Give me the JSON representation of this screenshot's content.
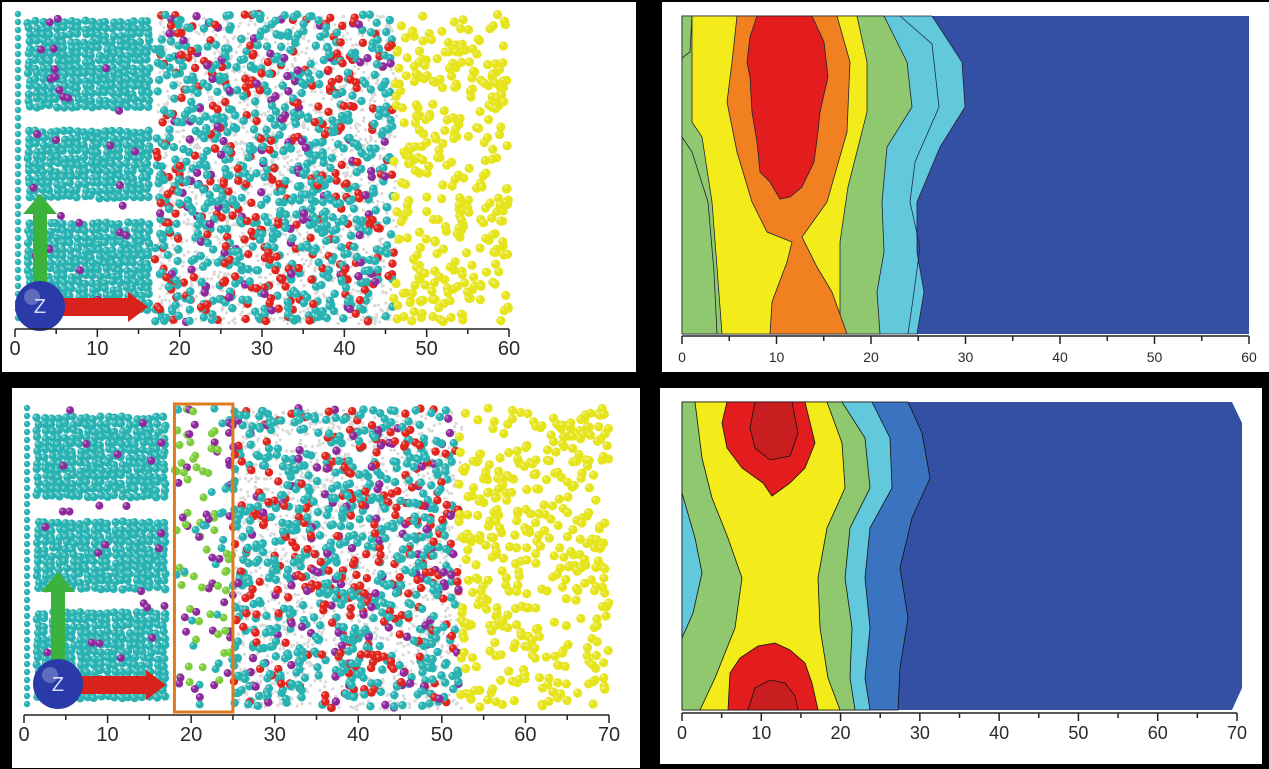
{
  "figure": {
    "layout": "2x2 grid of panels",
    "background": "#000000",
    "panels": [
      {
        "id": "top-left",
        "type": "molecular-snapshot",
        "x_axis": {
          "ticks": [
            "0",
            "10",
            "20",
            "30",
            "40",
            "50",
            "60"
          ],
          "min": 0,
          "max": 60
        },
        "regions": [
          {
            "name": "layered-crystal-teal",
            "x_range": [
              0,
              17
            ],
            "color": "#29b2b2"
          },
          {
            "name": "mixed-liquid-teal-red-purple",
            "x_range": [
              17,
              46
            ],
            "colors": [
              "#29b2b2",
              "#e0241e",
              "#8e2a9c",
              "#d9d9d9"
            ]
          },
          {
            "name": "yellow-atoms",
            "x_range": [
              46,
              60
            ],
            "color": "#e6e41c"
          }
        ],
        "axes_gizmo": {
          "z_label": "Z",
          "up_arrow_color": "#3bb23b",
          "right_arrow_color": "#d8231c",
          "sphere_color": "#2a3aa8"
        }
      },
      {
        "id": "top-right",
        "type": "contour-map",
        "x_axis": {
          "ticks": [
            "0",
            "10",
            "20",
            "30",
            "40",
            "50",
            "60"
          ],
          "min": 0,
          "max": 60
        }
      },
      {
        "id": "bottom-left",
        "type": "molecular-snapshot",
        "x_axis": {
          "ticks": [
            "0",
            "10",
            "20",
            "30",
            "40",
            "50",
            "60",
            "70"
          ],
          "min": 0,
          "max": 70
        },
        "highlight_box": {
          "x_range": [
            18,
            25
          ],
          "color": "#e07a1f"
        },
        "regions": [
          {
            "name": "layered-crystal-teal",
            "x_range": [
              0,
              17
            ],
            "color": "#29b2b2"
          },
          {
            "name": "green-purple-interface",
            "x_range": [
              18,
              25
            ],
            "colors": [
              "#7ccc3c",
              "#8e2a9c",
              "#29b2b2"
            ]
          },
          {
            "name": "mixed-liquid-teal-red",
            "x_range": [
              25,
              52
            ],
            "colors": [
              "#29b2b2",
              "#e0241e",
              "#d9d9d9"
            ]
          },
          {
            "name": "yellow-atoms",
            "x_range": [
              52,
              70
            ],
            "color": "#e6e41c"
          }
        ],
        "axes_gizmo": {
          "z_label": "Z",
          "up_arrow_color": "#3bb23b",
          "right_arrow_color": "#d8231c",
          "sphere_color": "#2a3aa8"
        }
      },
      {
        "id": "bottom-right",
        "type": "contour-map",
        "x_axis": {
          "ticks": [
            "0",
            "10",
            "20",
            "30",
            "40",
            "50",
            "60",
            "70"
          ],
          "min": 0,
          "max": 70
        }
      }
    ],
    "contour_colors": {
      "red": "#e31c1e",
      "dark_red": "#c91e1f",
      "orange": "#f08020",
      "yellow": "#f3ec1a",
      "light_green": "#8fc86e",
      "cyan": "#62c8dc",
      "mid_blue": "#3a74c0",
      "dark_blue": "#3450a5"
    }
  },
  "chart_data": [
    {
      "type": "heatmap",
      "title": "",
      "xlabel": "",
      "ylabel": "",
      "x_ticks": [
        0,
        10,
        20,
        30,
        40,
        50,
        60
      ],
      "xlim": [
        0,
        60
      ],
      "grid": false,
      "description": "Filled contour map; high (red) core at x≈7–16 in upper 60%, orange envelope x≈3–18, yellow x≈2–20, green x≈20–23, cyan x≈23–27, blue beyond x≈27–33",
      "levels_left_to_right": [
        "light_green",
        "yellow",
        "orange",
        "red",
        "orange",
        "yellow",
        "light_green",
        "cyan",
        "dark_blue"
      ]
    },
    {
      "type": "heatmap",
      "title": "",
      "xlabel": "",
      "ylabel": "",
      "x_ticks": [
        0,
        10,
        20,
        30,
        40,
        50,
        60,
        70
      ],
      "xlim": [
        0,
        70
      ],
      "grid": false,
      "description": "Filled contour map; two red maxima at x≈8–18 near top and bottom edges, yellow band x≈4–20, green x≈20–24, cyan x≈24–28, mid-blue x≈28–33, dark blue beyond x≈33",
      "levels_left_to_right": [
        "cyan",
        "light_green",
        "yellow",
        "red",
        "yellow",
        "light_green",
        "cyan",
        "mid_blue",
        "dark_blue"
      ]
    }
  ]
}
